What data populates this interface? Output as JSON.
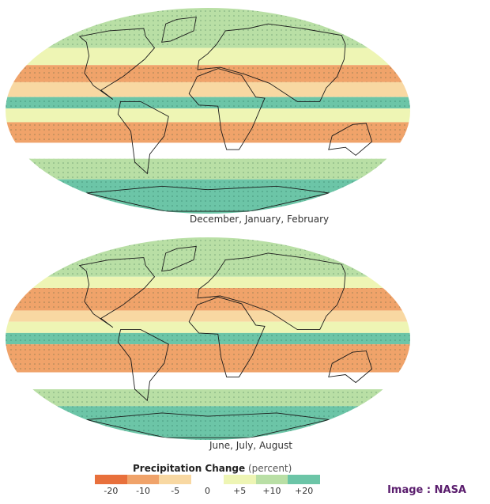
{
  "panels": [
    {
      "season": "December, January, February",
      "bands": [
        {
          "lat_from": 90,
          "lat_to": 55,
          "level": "+10"
        },
        {
          "lat_from": 55,
          "lat_to": 40,
          "level": "+5"
        },
        {
          "lat_from": 40,
          "lat_to": 25,
          "level": "-10"
        },
        {
          "lat_from": 25,
          "lat_to": 12,
          "level": "-5"
        },
        {
          "lat_from": 12,
          "lat_to": 2,
          "level": "+20"
        },
        {
          "lat_from": 2,
          "lat_to": -10,
          "level": "+5"
        },
        {
          "lat_from": -10,
          "lat_to": -28,
          "level": "-10"
        },
        {
          "lat_from": -28,
          "lat_to": -42,
          "level": "0"
        },
        {
          "lat_from": -42,
          "lat_to": -60,
          "level": "+10"
        },
        {
          "lat_from": -60,
          "lat_to": -90,
          "level": "+20"
        }
      ]
    },
    {
      "season": "June, July, August",
      "bands": [
        {
          "lat_from": 90,
          "lat_to": 55,
          "level": "+10"
        },
        {
          "lat_from": 55,
          "lat_to": 45,
          "level": "+5"
        },
        {
          "lat_from": 45,
          "lat_to": 25,
          "level": "-10"
        },
        {
          "lat_from": 25,
          "lat_to": 15,
          "level": "-5"
        },
        {
          "lat_from": 15,
          "lat_to": 5,
          "level": "+5"
        },
        {
          "lat_from": 5,
          "lat_to": -5,
          "level": "+20"
        },
        {
          "lat_from": -5,
          "lat_to": -30,
          "level": "-10"
        },
        {
          "lat_from": -30,
          "lat_to": -45,
          "level": "0"
        },
        {
          "lat_from": -45,
          "lat_to": -60,
          "level": "+10"
        },
        {
          "lat_from": -60,
          "lat_to": -90,
          "level": "+20"
        }
      ]
    }
  ],
  "legend": {
    "title": "Precipitation Change",
    "unit": "(percent)",
    "ticks": [
      "-20",
      "-10",
      "-5",
      "0",
      "+5",
      "+10",
      "+20"
    ],
    "colors": [
      "#e8703c",
      "#f0a36a",
      "#f8d8a2",
      "#ffffff",
      "#eef5b4",
      "#b9dfa5",
      "#6cc5a7"
    ]
  },
  "credit": "Image : NASA"
}
